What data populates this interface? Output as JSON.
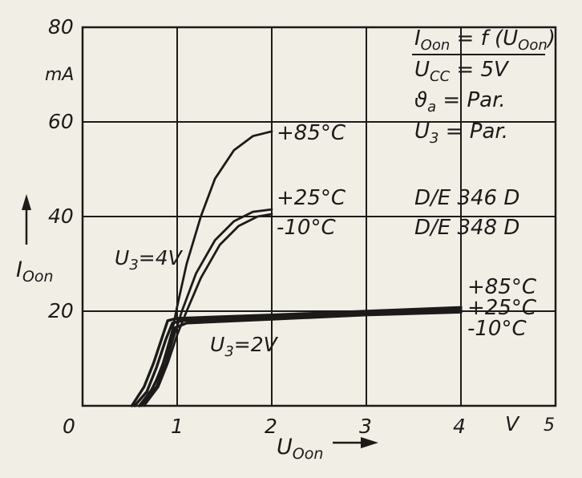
{
  "chart_data": {
    "type": "line",
    "title": "",
    "xlim": [
      0,
      5
    ],
    "ylim": [
      0,
      80
    ],
    "grid": true,
    "x_ticks": [
      "0",
      "1",
      "2",
      "3",
      "4",
      "V",
      "5"
    ],
    "y_ticks": [
      "80",
      "mA",
      "60",
      "40",
      "20"
    ],
    "xlabel": "U",
    "xlabel_sub": "Oon",
    "ylabel": "I",
    "ylabel_sub": "Oon",
    "legend_box": {
      "l1": {
        "a": "I",
        "a_sub": "Oon",
        "b": " = f (U",
        "b_sub": "Oon",
        "c": ")"
      },
      "l2": {
        "a": "U",
        "a_sub": "CC",
        "b": " = 5V"
      },
      "l3": {
        "a": "ϑ",
        "a_sub": "a",
        "b": " = Par."
      },
      "l4": {
        "a": "U",
        "a_sub": "3",
        "b": " = Par."
      }
    },
    "device_1": "D/E 346 D",
    "device_2": "D/E 348 D",
    "group_label_u4": {
      "a": "U",
      "sub": "3",
      "b": "=4V"
    },
    "group_label_u2": {
      "a": "U",
      "sub": "3",
      "b": "=2V"
    },
    "temp_labels_u4": [
      "+85°C",
      "+25°C",
      "-10°C"
    ],
    "temp_labels_u2": [
      "+85°C",
      "+25°C",
      "-10°C"
    ],
    "series": [
      {
        "name": "+85°C",
        "group": "U3=4V",
        "x": [
          0.6,
          0.75,
          0.85,
          0.95,
          1.0,
          1.1,
          1.25,
          1.4,
          1.6,
          1.8,
          2.0
        ],
        "y": [
          0,
          4,
          9,
          16,
          21,
          30,
          40,
          48,
          54,
          57,
          58
        ]
      },
      {
        "name": "+25°C",
        "group": "U3=4V",
        "x": [
          0.62,
          0.78,
          0.88,
          0.97,
          1.05,
          1.2,
          1.4,
          1.6,
          1.8,
          2.0
        ],
        "y": [
          0,
          4,
          9,
          15,
          20,
          28,
          35,
          39,
          41,
          41.5
        ]
      },
      {
        "name": "-10°C",
        "group": "U3=4V",
        "x": [
          0.65,
          0.8,
          0.9,
          1.0,
          1.1,
          1.25,
          1.45,
          1.65,
          1.85,
          2.0
        ],
        "y": [
          0,
          4,
          9,
          15,
          20,
          27,
          34,
          38,
          40,
          40.5
        ]
      },
      {
        "name": "+85°C",
        "group": "U3=2V",
        "x": [
          0.52,
          0.65,
          0.75,
          0.85,
          0.9,
          1.0,
          2.0,
          3.0,
          4.0
        ],
        "y": [
          0,
          4,
          9,
          15,
          18,
          18.5,
          19.2,
          20,
          20.8
        ]
      },
      {
        "name": "+25°C",
        "group": "U3=2V",
        "x": [
          0.55,
          0.68,
          0.78,
          0.88,
          0.95,
          1.05,
          2.0,
          3.0,
          4.0
        ],
        "y": [
          0,
          3,
          8,
          14,
          17.5,
          18,
          18.8,
          19.6,
          20.3
        ]
      },
      {
        "name": "-10°C",
        "group": "U3=2V",
        "x": [
          0.6,
          0.72,
          0.82,
          0.9,
          0.98,
          1.1,
          2.0,
          3.0,
          4.0
        ],
        "y": [
          0,
          3,
          7,
          12,
          16.5,
          17.5,
          18.3,
          19.2,
          19.8
        ]
      }
    ]
  }
}
